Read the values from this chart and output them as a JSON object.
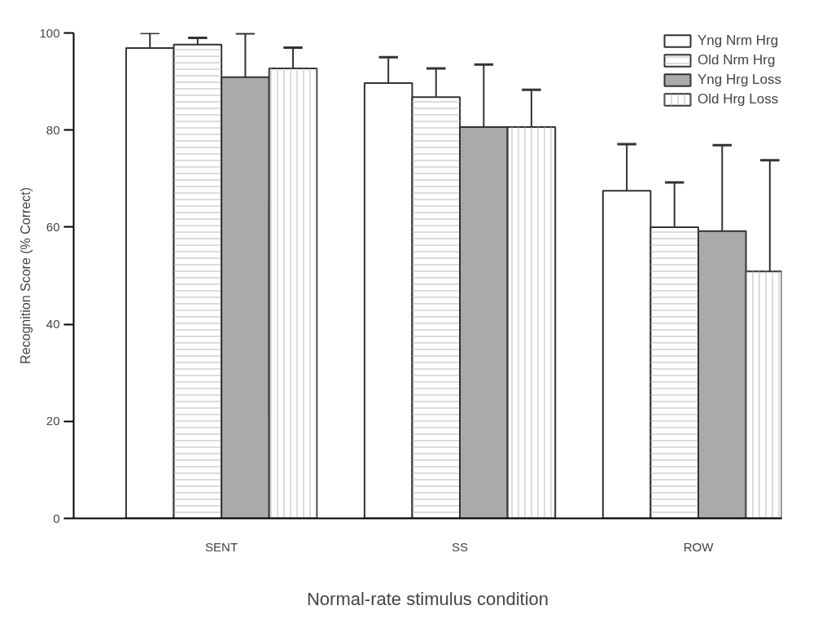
{
  "chart_data": {
    "type": "bar",
    "xlabel": "Normal-rate stimulus condition",
    "ylabel": "Recognition Score (% Correct)",
    "categories": [
      "SENT",
      "SS",
      "ROW"
    ],
    "series": [
      {
        "name": "Yng Nrm Hrg",
        "color": "#ffffff",
        "values": [
          96.9,
          89.7,
          67.5
        ],
        "errors": [
          [
            96.9,
            100.0
          ],
          [
            89.7,
            95.0
          ],
          [
            67.5,
            77.1
          ]
        ]
      },
      {
        "name": "Old Nrm Hrg",
        "color": "#ffffff",
        "values": [
          97.6,
          86.8,
          60.0
        ],
        "errors": [
          [
            97.6,
            99.0
          ],
          [
            86.8,
            92.7
          ],
          [
            60.0,
            69.2
          ]
        ]
      },
      {
        "name": "Yng Hrg Loss",
        "color": "#aaaaaa",
        "values": [
          90.9,
          80.6,
          59.2
        ],
        "errors": [
          [
            90.9,
            99.9
          ],
          [
            80.6,
            93.5
          ],
          [
            59.2,
            76.9
          ]
        ]
      },
      {
        "name": "Old Hrg Loss",
        "color": "#ffffff",
        "values": [
          92.7,
          80.6,
          50.9
        ],
        "errors": [
          [
            92.7,
            97.0
          ],
          [
            80.6,
            88.3
          ],
          [
            50.9,
            73.8
          ]
        ]
      }
    ],
    "ylim": [
      0,
      100
    ],
    "yticks": [
      0,
      20,
      40,
      60,
      80,
      100
    ],
    "grid": false,
    "legend": "top right"
  }
}
